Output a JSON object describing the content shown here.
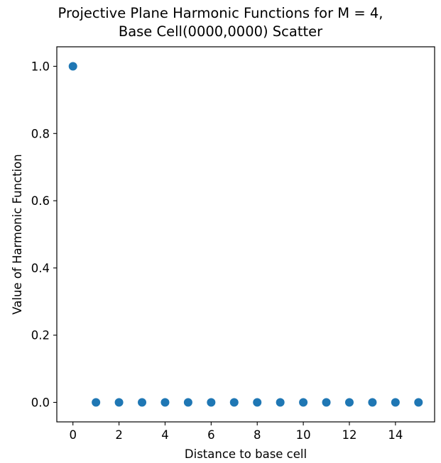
{
  "chart_data": {
    "type": "scatter",
    "title_lines": [
      "Projective Plane Harmonic Functions for M = 4,",
      "Base Cell(0000,0000) Scatter"
    ],
    "xlabel": "Distance to base cell",
    "ylabel": "Value of Harmonic Function",
    "xlim": [
      -0.7,
      15.7
    ],
    "ylim": [
      -0.058,
      1.058
    ],
    "xticks": [
      0,
      2,
      4,
      6,
      8,
      10,
      12,
      14
    ],
    "xtick_labels": [
      "0",
      "2",
      "4",
      "6",
      "8",
      "10",
      "12",
      "14"
    ],
    "yticks": [
      0.0,
      0.2,
      0.4,
      0.6,
      0.8,
      1.0
    ],
    "ytick_labels": [
      "0.0",
      "0.2",
      "0.4",
      "0.6",
      "0.8",
      "1.0"
    ],
    "grid": false,
    "marker_color": "#1f77b4",
    "points": [
      {
        "x": 0,
        "y": 1.0
      },
      {
        "x": 1,
        "y": 0.0
      },
      {
        "x": 2,
        "y": 0.0
      },
      {
        "x": 3,
        "y": 0.0
      },
      {
        "x": 4,
        "y": 0.0
      },
      {
        "x": 5,
        "y": 0.0
      },
      {
        "x": 6,
        "y": 0.0
      },
      {
        "x": 7,
        "y": 0.0
      },
      {
        "x": 8,
        "y": 0.0
      },
      {
        "x": 9,
        "y": 0.0
      },
      {
        "x": 10,
        "y": 0.0
      },
      {
        "x": 11,
        "y": 0.0
      },
      {
        "x": 12,
        "y": 0.0
      },
      {
        "x": 13,
        "y": 0.0
      },
      {
        "x": 14,
        "y": 0.0
      },
      {
        "x": 15,
        "y": 0.0
      }
    ]
  }
}
